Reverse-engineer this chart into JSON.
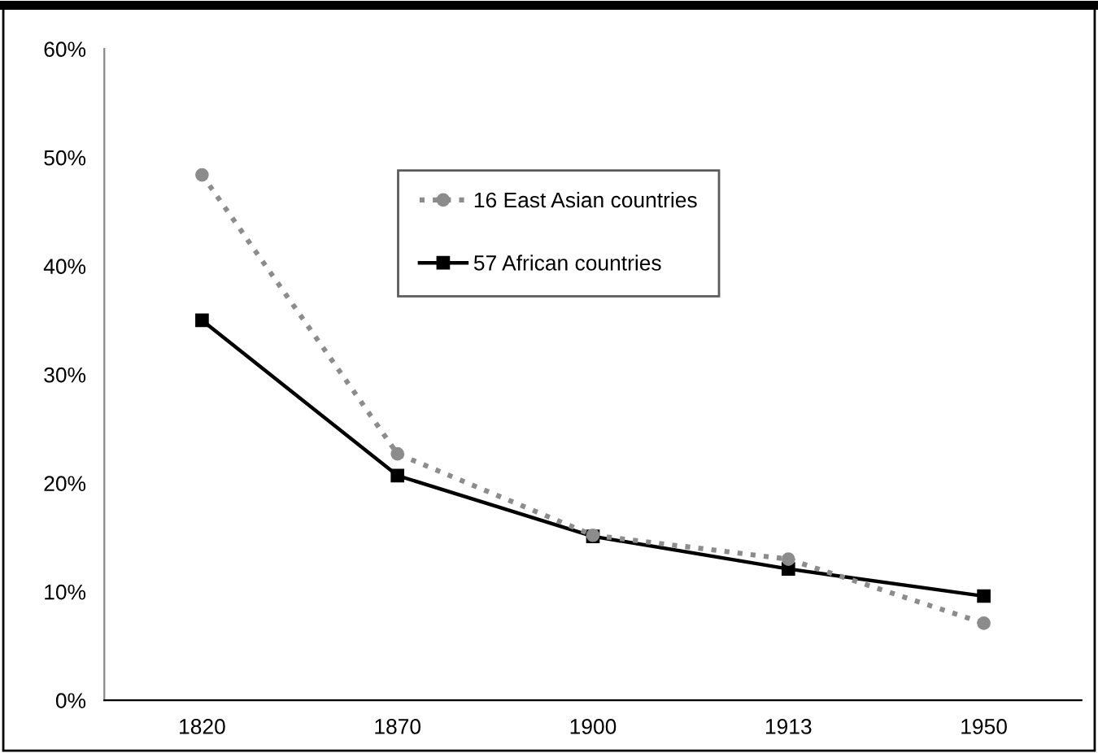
{
  "chart_data": {
    "type": "line",
    "categories": [
      "1820",
      "1870",
      "1900",
      "1913",
      "1950"
    ],
    "series": [
      {
        "name": "16 East Asian countries",
        "color": "#8c8c8c",
        "marker": "circle",
        "line_style": "dotted",
        "values": [
          48.4,
          22.7,
          15.2,
          13.0,
          7.1
        ]
      },
      {
        "name": "57 African countries",
        "color": "#000000",
        "marker": "square",
        "line_style": "solid",
        "values": [
          35.0,
          20.7,
          15.1,
          12.1,
          9.6
        ]
      }
    ],
    "ylim": [
      0,
      60
    ],
    "yticks": [
      {
        "value": 0,
        "label": "0%"
      },
      {
        "value": 10,
        "label": "10%"
      },
      {
        "value": 20,
        "label": "20%"
      },
      {
        "value": 30,
        "label": "30%"
      },
      {
        "value": 40,
        "label": "40%"
      },
      {
        "value": 50,
        "label": "50%"
      },
      {
        "value": 60,
        "label": "60%"
      }
    ],
    "grid": false,
    "legend": "top right"
  }
}
